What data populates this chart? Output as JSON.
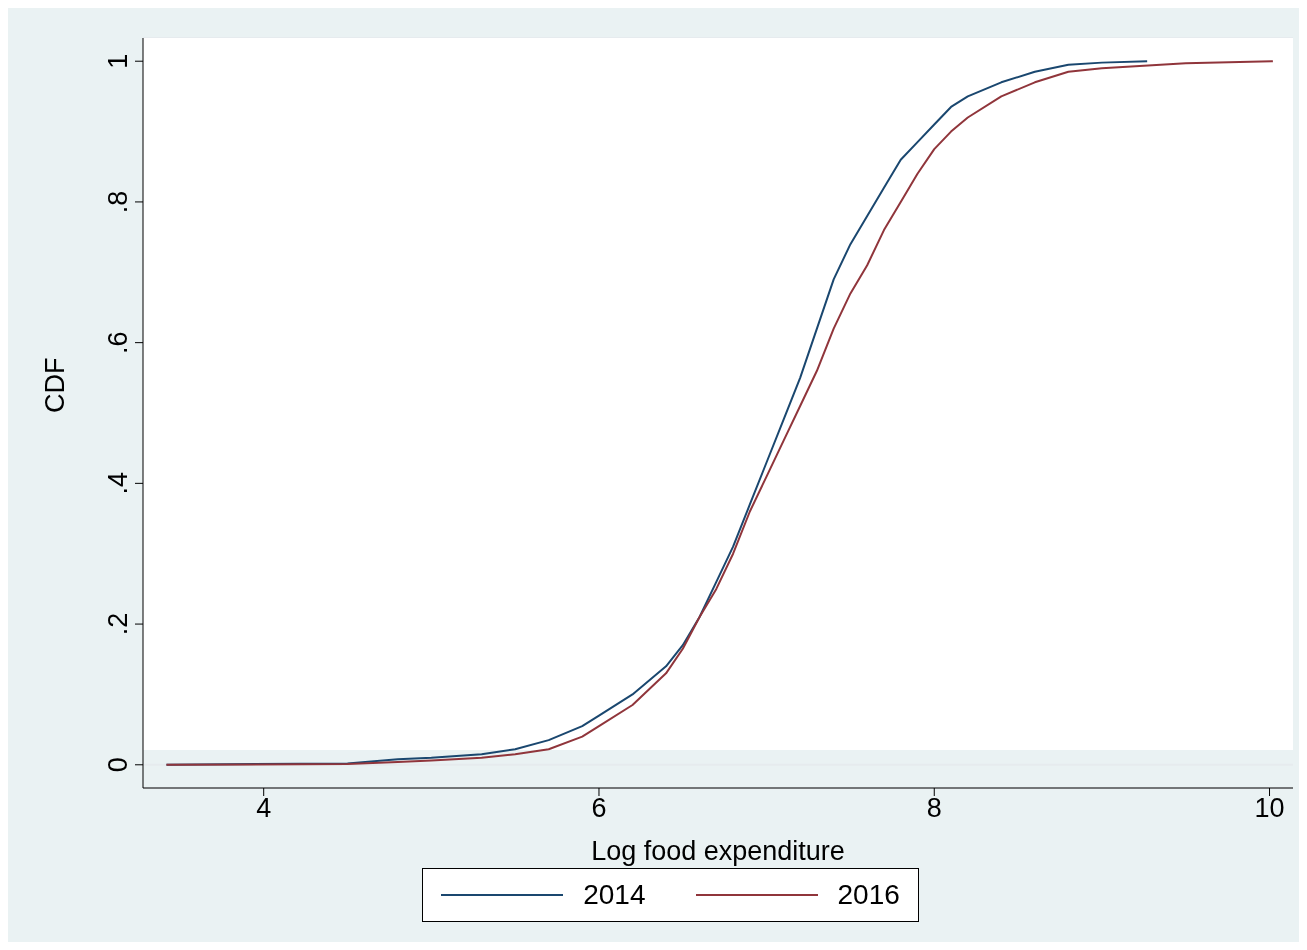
{
  "chart_data": {
    "type": "line",
    "xlabel": "Log food expenditure",
    "ylabel": "CDF",
    "xlim": [
      3.28,
      10.14
    ],
    "xticks": [
      4,
      6,
      8,
      10
    ],
    "ylim": [
      -0.033,
      1.033
    ],
    "yticks": [
      0,
      {
        "value": 0.2,
        "label": ".2"
      },
      {
        "value": 0.4,
        "label": ".4"
      },
      {
        "value": 0.6,
        "label": ".6"
      },
      {
        "value": 0.8,
        "label": ".8"
      },
      1
    ],
    "grid": "y",
    "legend": "bottom",
    "marker": "none",
    "line_style": "solid",
    "series": [
      {
        "name": "2014",
        "color": "#1a476f",
        "x": [
          3.42,
          4.5,
          4.8,
          5.0,
          5.3,
          5.5,
          5.7,
          5.9,
          6.0,
          6.2,
          6.4,
          6.5,
          6.6,
          6.7,
          6.8,
          6.9,
          7.0,
          7.1,
          7.2,
          7.3,
          7.4,
          7.5,
          7.6,
          7.7,
          7.8,
          7.9,
          8.0,
          8.1,
          8.2,
          8.4,
          8.6,
          8.8,
          9.0,
          9.27
        ],
        "values": [
          0,
          0.002,
          0.008,
          0.01,
          0.015,
          0.022,
          0.035,
          0.055,
          0.07,
          0.1,
          0.14,
          0.17,
          0.21,
          0.26,
          0.31,
          0.37,
          0.43,
          0.49,
          0.55,
          0.62,
          0.69,
          0.74,
          0.78,
          0.82,
          0.86,
          0.885,
          0.91,
          0.935,
          0.95,
          0.97,
          0.985,
          0.995,
          0.998,
          1
        ]
      },
      {
        "name": "2016",
        "color": "#90353b",
        "x": [
          3.42,
          4.5,
          4.8,
          5.0,
          5.3,
          5.5,
          5.7,
          5.9,
          6.0,
          6.2,
          6.4,
          6.5,
          6.6,
          6.7,
          6.8,
          6.9,
          7.0,
          7.1,
          7.2,
          7.3,
          7.4,
          7.5,
          7.6,
          7.7,
          7.8,
          7.9,
          8.0,
          8.1,
          8.2,
          8.4,
          8.6,
          8.8,
          9.0,
          9.5,
          10.02
        ],
        "values": [
          0,
          0.001,
          0.004,
          0.006,
          0.01,
          0.015,
          0.022,
          0.04,
          0.055,
          0.085,
          0.13,
          0.165,
          0.21,
          0.25,
          0.3,
          0.36,
          0.41,
          0.46,
          0.51,
          0.56,
          0.62,
          0.67,
          0.71,
          0.76,
          0.8,
          0.84,
          0.875,
          0.9,
          0.92,
          0.95,
          0.97,
          0.985,
          0.99,
          0.997,
          1
        ]
      }
    ]
  }
}
